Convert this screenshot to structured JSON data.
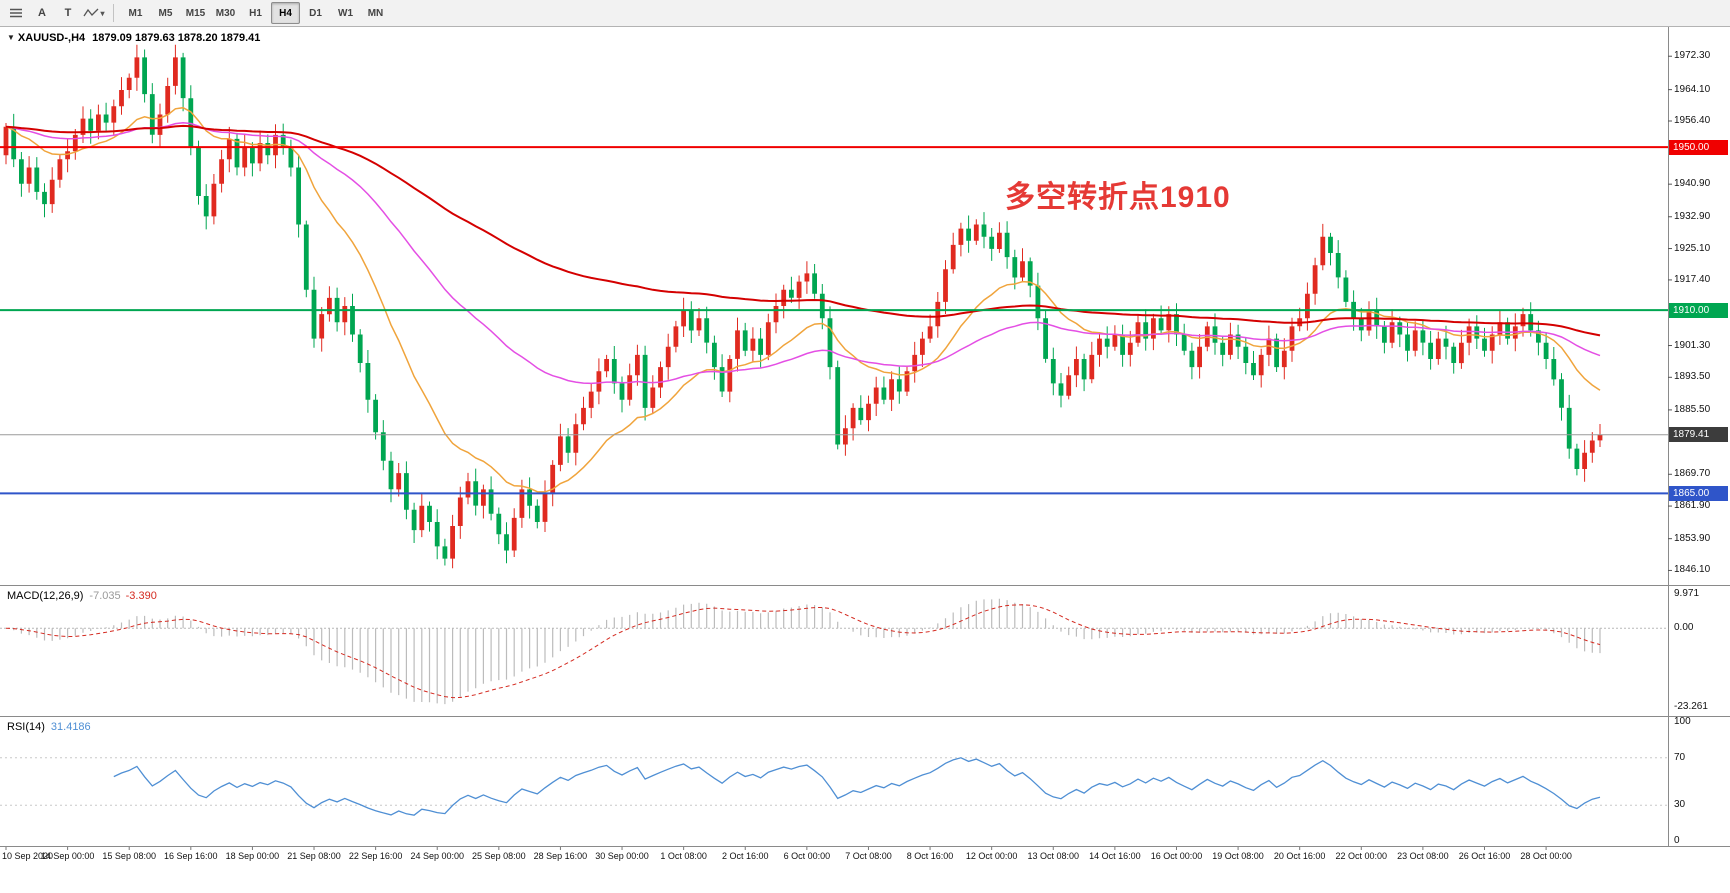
{
  "toolbar": {
    "tools": [
      {
        "label": "A",
        "name": "cursor-tool"
      },
      {
        "label": "T",
        "name": "text-tool"
      }
    ],
    "icons": [
      "chart-list-icon",
      "zigzag-indicator-icon",
      "dropdown-caret-icon"
    ],
    "timeframes": [
      "M1",
      "M5",
      "M15",
      "M30",
      "H1",
      "H4",
      "D1",
      "W1",
      "MN"
    ],
    "active_timeframe": "H4"
  },
  "chart": {
    "symbol": "XAUUSD-,H4",
    "ohlc": "1879.09 1879.63 1878.20 1879.41",
    "annotation": {
      "text": "多空转折点1910",
      "color": "#e53935"
    },
    "levels": [
      {
        "price": 1950.0,
        "label": "1950.00",
        "color": "#f00000",
        "width": 2
      },
      {
        "price": 1910.0,
        "label": "1910.00",
        "color": "#00a651",
        "width": 2
      },
      {
        "price": 1879.41,
        "label": "1879.41",
        "color": "#9a9a9a",
        "width": 1,
        "badge_color": "#3c3c3c",
        "current": true
      },
      {
        "price": 1865.0,
        "label": "1865.00",
        "color": "#2f55c9",
        "width": 2
      }
    ],
    "y_ticks": [
      "1972.30",
      "1964.10",
      "1956.40",
      "1940.90",
      "1932.90",
      "1925.10",
      "1917.40",
      "1901.30",
      "1893.50",
      "1885.50",
      "1869.70",
      "1861.90",
      "1853.90",
      "1846.10"
    ]
  },
  "chart_data": {
    "type": "candlestick",
    "symbol": "XAUUSD",
    "timeframe": "H4",
    "bull_color": "#e02a20",
    "bear_color": "#00a651",
    "ylim": [
      1844,
      1978
    ],
    "bars_per_label": 8,
    "x_labels": [
      "10 Sep 2020",
      "14 Sep 00:00",
      "15 Sep 08:00",
      "16 Sep 16:00",
      "18 Sep 00:00",
      "21 Sep 08:00",
      "22 Sep 16:00",
      "24 Sep 00:00",
      "25 Sep 08:00",
      "28 Sep 16:00",
      "30 Sep 00:00",
      "1 Oct 08:00",
      "2 Oct 16:00",
      "6 Oct 00:00",
      "7 Oct 08:00",
      "8 Oct 16:00",
      "12 Oct 00:00",
      "13 Oct 08:00",
      "14 Oct 16:00",
      "16 Oct 00:00",
      "19 Oct 08:00",
      "20 Oct 16:00",
      "22 Oct 00:00",
      "23 Oct 08:00",
      "26 Oct 16:00",
      "28 Oct 00:00"
    ],
    "first_open": 1948,
    "closes": [
      1955,
      1947,
      1941,
      1945,
      1939,
      1936,
      1942,
      1947,
      1949,
      1953,
      1957,
      1954,
      1958,
      1956,
      1960,
      1964,
      1967,
      1972,
      1963,
      1953,
      1958,
      1965,
      1972,
      1962,
      1950,
      1938,
      1933,
      1941,
      1947,
      1952,
      1945,
      1950,
      1946,
      1951,
      1948,
      1953,
      1950,
      1945,
      1931,
      1915,
      1903,
      1909,
      1913,
      1907,
      1911,
      1904,
      1897,
      1888,
      1880,
      1873,
      1866,
      1870,
      1861,
      1856,
      1862,
      1858,
      1852,
      1849,
      1857,
      1864,
      1868,
      1862,
      1866,
      1860,
      1855,
      1851,
      1859,
      1866,
      1862,
      1858,
      1865,
      1872,
      1879,
      1875,
      1882,
      1886,
      1890,
      1895,
      1898,
      1892,
      1888,
      1894,
      1899,
      1886,
      1891,
      1896,
      1901,
      1906,
      1910,
      1905,
      1908,
      1902,
      1896,
      1890,
      1898,
      1905,
      1900,
      1903,
      1899,
      1907,
      1911,
      1915,
      1913,
      1917,
      1919,
      1914,
      1908,
      1896,
      1877,
      1881,
      1886,
      1883,
      1887,
      1891,
      1888,
      1893,
      1890,
      1895,
      1899,
      1903,
      1906,
      1912,
      1920,
      1926,
      1930,
      1927,
      1931,
      1928,
      1925,
      1929,
      1923,
      1918,
      1922,
      1916,
      1908,
      1898,
      1892,
      1889,
      1894,
      1898,
      1893,
      1899,
      1903,
      1901,
      1904,
      1899,
      1902,
      1907,
      1903,
      1908,
      1905,
      1909,
      1904,
      1900,
      1896,
      1901,
      1906,
      1902,
      1899,
      1904,
      1901,
      1897,
      1894,
      1899,
      1903,
      1896,
      1900,
      1906,
      1908,
      1914,
      1921,
      1928,
      1924,
      1918,
      1912,
      1908,
      1905,
      1910,
      1906,
      1902,
      1907,
      1904,
      1900,
      1905,
      1902,
      1898,
      1903,
      1901,
      1897,
      1902,
      1906,
      1903,
      1900,
      1904,
      1907,
      1903,
      1906,
      1909,
      1905,
      1902,
      1898,
      1893,
      1886,
      1876,
      1871,
      1875,
      1878,
      1879.41
    ],
    "last_bar": {
      "open": 1879.09,
      "high": 1879.63,
      "low": 1878.2,
      "close": 1879.41
    },
    "moving_averages": [
      {
        "name": "ma-fast",
        "period": 18,
        "color": "#f0a43c",
        "width": 1.5
      },
      {
        "name": "ma-mid",
        "period": 55,
        "color": "#e44fe4",
        "width": 1.5
      },
      {
        "name": "ma-slow",
        "period": 130,
        "color": "#d40000",
        "width": 2
      }
    ]
  },
  "macd_panel": {
    "name": "MACD(12,26,9)",
    "main_value": "-7.035",
    "signal_value": "-3.390",
    "fast": 12,
    "slow": 26,
    "signal": 9,
    "axis": [
      "9.971",
      "0.00",
      "-23.261"
    ],
    "histogram_color": "#bcbcbc",
    "signal_color": "#d42a20"
  },
  "rsi_panel": {
    "name": "RSI(14)",
    "value": "31.4186",
    "period": 14,
    "axis": [
      "100",
      "70",
      "30",
      "0"
    ],
    "levels": [
      70,
      30
    ],
    "line_color": "#4f8fd4"
  }
}
